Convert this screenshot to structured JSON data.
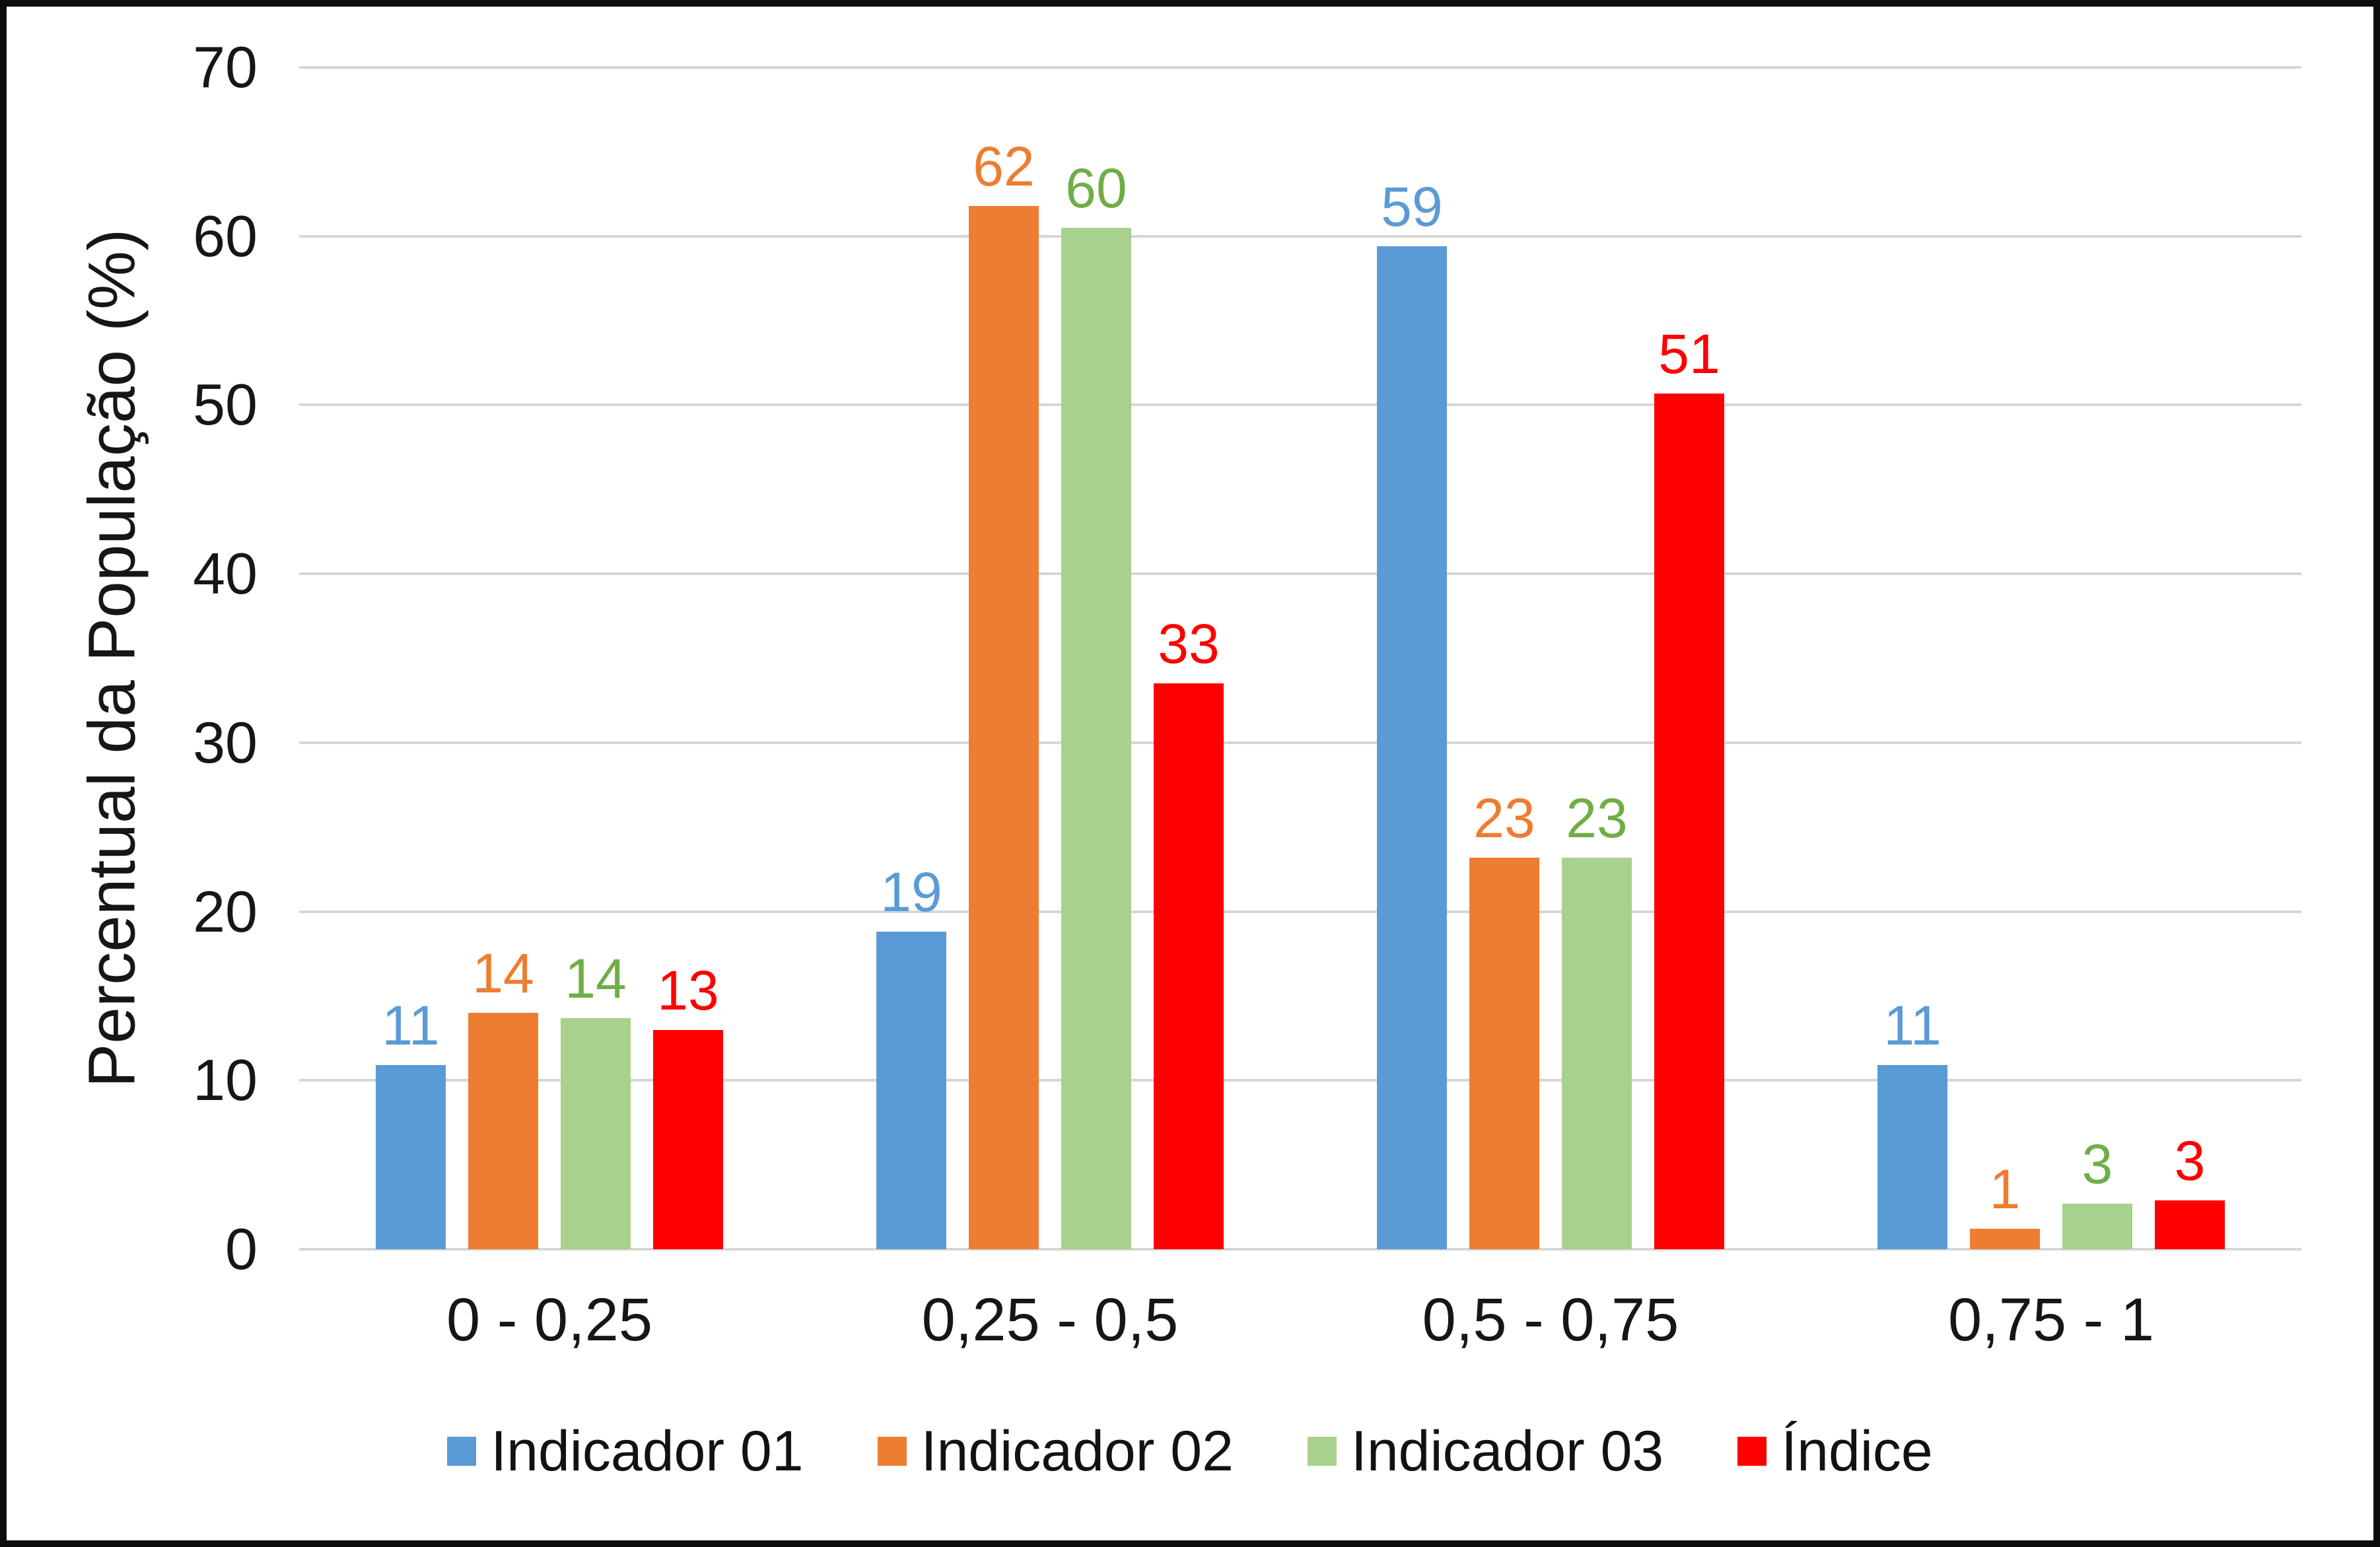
{
  "chart_data": {
    "type": "bar",
    "title": "",
    "ylabel": "Percentual da População (%)",
    "xlabel": "",
    "ylim": [
      0,
      70
    ],
    "yticks": [
      0,
      10,
      20,
      30,
      40,
      50,
      60,
      70
    ],
    "grid": true,
    "legend_position": "bottom",
    "categories": [
      "0 - 0,25",
      "0,25 - 0,5",
      "0,5 - 0,75",
      "0,75 - 1"
    ],
    "series": [
      {
        "name": "Indicador 01",
        "color": "#5B9BD5",
        "label_color": "#5B9BD5",
        "labels": [
          "11",
          "19",
          "59",
          "11"
        ],
        "values": [
          10.9,
          18.8,
          59.4,
          10.9
        ]
      },
      {
        "name": "Indicador 02",
        "color": "#ED7D31",
        "label_color": "#ED7D31",
        "labels": [
          "14",
          "62",
          "23",
          "1"
        ],
        "values": [
          14.0,
          61.8,
          23.2,
          1.2
        ]
      },
      {
        "name": "Indicador 03",
        "color": "#A9D18E",
        "label_color": "#70AD47",
        "labels": [
          "14",
          "60",
          "23",
          "3"
        ],
        "values": [
          13.7,
          60.5,
          23.2,
          2.7
        ]
      },
      {
        "name": "Índice",
        "color": "#FF0000",
        "label_color": "#FF0000",
        "labels": [
          "13",
          "33",
          "51",
          "3"
        ],
        "values": [
          13.0,
          33.5,
          50.7,
          2.9
        ]
      }
    ],
    "colors": {
      "gridline": "#d6d6d6",
      "axis_text": "#161616",
      "frame_border": "#0d0d0d",
      "background": "#ffffff"
    }
  }
}
